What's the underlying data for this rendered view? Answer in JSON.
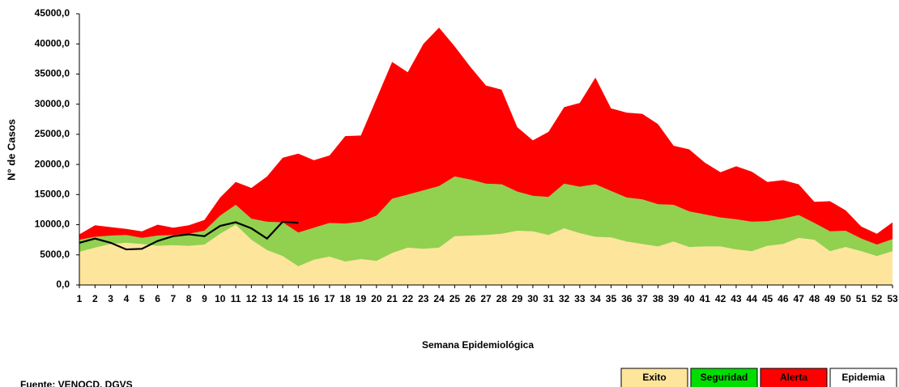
{
  "chart_data": {
    "type": "stacked_area",
    "categories": [
      "1",
      "2",
      "3",
      "4",
      "5",
      "6",
      "7",
      "8",
      "9",
      "10",
      "11",
      "12",
      "13",
      "14",
      "15",
      "16",
      "17",
      "18",
      "19",
      "20",
      "21",
      "22",
      "23",
      "24",
      "25",
      "26",
      "27",
      "28",
      "29",
      "30",
      "31",
      "32",
      "33",
      "34",
      "35",
      "36",
      "37",
      "38",
      "39",
      "40",
      "41",
      "42",
      "43",
      "44",
      "45",
      "46",
      "47",
      "48",
      "49",
      "50",
      "51",
      "52",
      "53"
    ],
    "series": [
      {
        "name": "Exito",
        "color": "#fde59c",
        "values": [
          5500,
          6200,
          6800,
          7000,
          6800,
          6500,
          6600,
          6500,
          6700,
          8500,
          10000,
          7500,
          5800,
          4800,
          3100,
          4200,
          4700,
          3900,
          4300,
          4000,
          5300,
          6200,
          6000,
          6200,
          8100,
          8200,
          8300,
          8500,
          9000,
          8900,
          8300,
          9400,
          8600,
          8000,
          7900,
          7200,
          6800,
          6400,
          7200,
          6300,
          6400,
          6400,
          5900,
          5600,
          6500,
          6800,
          7800,
          7500,
          5600,
          6300,
          5600,
          4800,
          5600
        ]
      },
      {
        "name": "Seguridad",
        "color": "#92d050",
        "legend_color": "#00dd00",
        "values": [
          2000,
          1800,
          1400,
          1300,
          1000,
          1700,
          1700,
          2000,
          2300,
          3000,
          3300,
          3500,
          4700,
          5600,
          5600,
          5300,
          5600,
          6300,
          6200,
          7500,
          9000,
          8800,
          9700,
          10200,
          9900,
          9300,
          8500,
          8200,
          6500,
          5900,
          6300,
          7400,
          7700,
          8700,
          7700,
          7300,
          7400,
          7000,
          6100,
          5900,
          5300,
          4800,
          5000,
          4900,
          4100,
          4200,
          3800,
          2800,
          3300,
          2700,
          2100,
          1900,
          2000
        ]
      },
      {
        "name": "Alerta",
        "color": "#ff0000",
        "values": [
          900,
          1900,
          1400,
          1000,
          1100,
          1800,
          1200,
          1400,
          1800,
          3000,
          3800,
          5100,
          7500,
          10700,
          13100,
          11200,
          11200,
          14500,
          14300,
          19400,
          22700,
          20300,
          24300,
          26300,
          21600,
          18700,
          16300,
          15700,
          10700,
          9200,
          10800,
          12700,
          13900,
          17700,
          13700,
          14100,
          14200,
          13300,
          9800,
          10300,
          8600,
          7500,
          8800,
          8300,
          6500,
          6400,
          5100,
          3500,
          5000,
          3400,
          2000,
          1800,
          2800
        ]
      }
    ],
    "epidemia": {
      "name": "Epidemia",
      "color": "#ffffff"
    },
    "line": {
      "color": "#000000",
      "values": [
        7000,
        7700,
        7000,
        5900,
        6000,
        7300,
        8100,
        8400,
        8100,
        9800,
        10400,
        9400,
        7700,
        10500,
        10300,
        null,
        null,
        null,
        null,
        null,
        null,
        null,
        null,
        null,
        null,
        null,
        null,
        null,
        null,
        null,
        null,
        null,
        null,
        null,
        null,
        null,
        null,
        null,
        null,
        null,
        null,
        null,
        null,
        null,
        null,
        null,
        null,
        null,
        null,
        null,
        null,
        null,
        null
      ]
    },
    "ylim": [
      0,
      45000
    ],
    "yticks": [
      {
        "value": 0,
        "label": "0,0"
      },
      {
        "value": 5000,
        "label": "5000,0"
      },
      {
        "value": 10000,
        "label": "10000,0"
      },
      {
        "value": 15000,
        "label": "15000,0"
      },
      {
        "value": 20000,
        "label": "20000,0"
      },
      {
        "value": 25000,
        "label": "25000,0"
      },
      {
        "value": 30000,
        "label": "30000,0"
      },
      {
        "value": 35000,
        "label": "35000,0"
      },
      {
        "value": 40000,
        "label": "40000,0"
      },
      {
        "value": 45000,
        "label": "45000,0"
      }
    ],
    "y_label": "N° de Casos",
    "x_label": "Semana Epidemiológica",
    "source": "Fuente: VENOCD, DGVS"
  }
}
